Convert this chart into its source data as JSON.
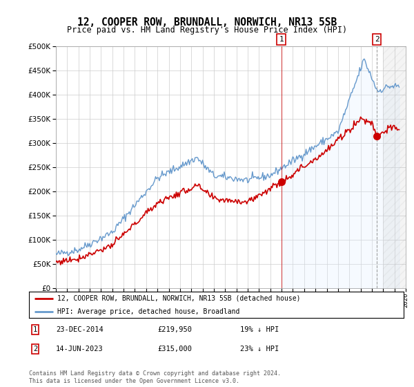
{
  "title": "12, COOPER ROW, BRUNDALL, NORWICH, NR13 5SB",
  "subtitle": "Price paid vs. HM Land Registry's House Price Index (HPI)",
  "hpi_color": "#6699cc",
  "hpi_fill_color": "#ddeeff",
  "price_color": "#cc0000",
  "sale1_date_num": 2014.97,
  "sale2_date_num": 2023.45,
  "sale1_price": 219950,
  "sale2_price": 315000,
  "sale1_date_str": "23-DEC-2014",
  "sale2_date_str": "14-JUN-2023",
  "sale1_pct": "19% ↓ HPI",
  "sale2_pct": "23% ↓ HPI",
  "legend_line1": "12, COOPER ROW, BRUNDALL, NORWICH, NR13 5SB (detached house)",
  "legend_line2": "HPI: Average price, detached house, Broadland",
  "footer": "Contains HM Land Registry data © Crown copyright and database right 2024.\nThis data is licensed under the Open Government Licence v3.0.",
  "xmin": 1995,
  "xmax": 2026,
  "background_color": "#ffffff",
  "grid_color": "#cccccc"
}
